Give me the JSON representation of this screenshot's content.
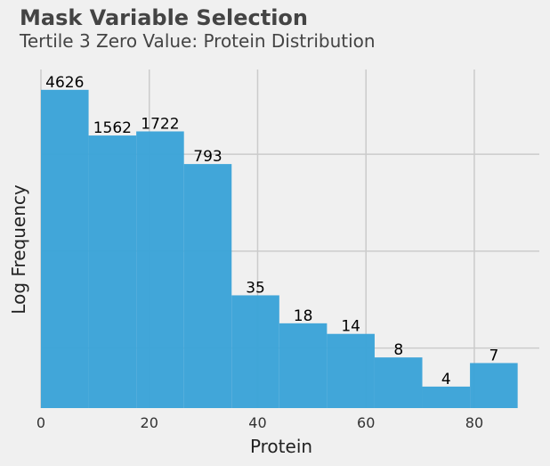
{
  "header": {
    "title": "Mask Variable Selection",
    "subtitle": "Tertile 3 Zero Value: Protein Distribution"
  },
  "colors": {
    "background": "#f0f0f0",
    "bar": "#3ba3d8",
    "grid": "#cbcbcb",
    "text": "#000000"
  },
  "chart_data": {
    "type": "bar",
    "subtype": "histogram",
    "title": "Mask Variable Selection",
    "subtitle": "Tertile 3 Zero Value: Protein Distribution",
    "xlabel": "Protein",
    "ylabel": "Log Frequency",
    "y_scale": "log",
    "grid": true,
    "bin_edges": [
      0,
      8.8,
      17.6,
      26.4,
      35.2,
      44.0,
      52.8,
      61.6,
      70.4,
      79.2,
      88.0
    ],
    "values": [
      4626,
      1562,
      1722,
      793,
      35,
      18,
      14,
      8,
      4,
      7
    ],
    "xlim": [
      0,
      92
    ],
    "ylim": [
      2.4,
      7500
    ],
    "x_ticks": [
      0,
      20,
      40,
      60,
      80
    ],
    "y_ticks": [
      10,
      100,
      1000
    ],
    "y_tick_labels_visible": false
  }
}
